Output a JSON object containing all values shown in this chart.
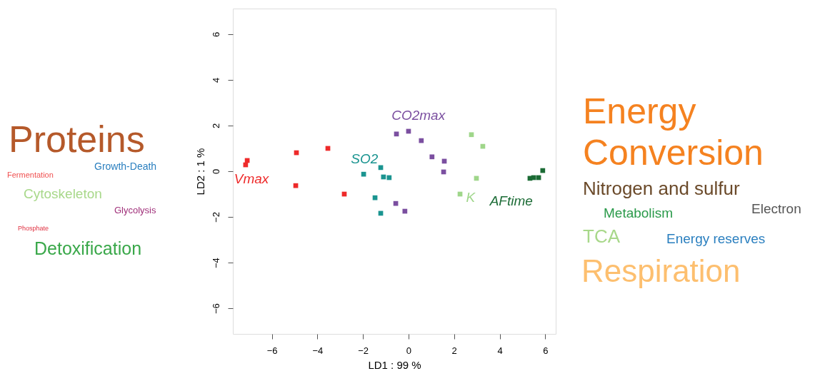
{
  "chart_data": {
    "type": "scatter",
    "xlabel": "LD1 :  99 %",
    "ylabel": "LD2 :  1 %",
    "xlim": [
      -7.71,
      6.46
    ],
    "ylim": [
      -7.12,
      7.12
    ],
    "xticks": [
      -6,
      -4,
      -2,
      0,
      2,
      4,
      6
    ],
    "yticks": [
      -6,
      -4,
      -2,
      0,
      2,
      4,
      6
    ],
    "grid": false,
    "legend": false,
    "marker": "square",
    "series": [
      {
        "name": "Vmax",
        "color": "#ee2a2a",
        "x": [
          -7.15,
          -7.08,
          -4.92,
          -4.95,
          -3.54,
          -2.82
        ],
        "values": [
          0.28,
          0.47,
          0.81,
          -0.63,
          1.0,
          -1.0
        ]
      },
      {
        "name": "SO2",
        "color": "#1a9490",
        "x": [
          -1.97,
          -1.22,
          -1.1,
          -0.85,
          -1.47,
          -1.22
        ],
        "values": [
          -0.13,
          0.16,
          -0.25,
          -0.28,
          -1.16,
          -1.84
        ]
      },
      {
        "name": "CO2max",
        "color": "#7b4fa0",
        "x": [
          -0.53,
          0.0,
          0.56,
          1.03,
          1.57,
          1.54,
          -0.56,
          -0.16
        ],
        "values": [
          1.63,
          1.75,
          1.34,
          0.63,
          0.44,
          -0.03,
          -1.41,
          -1.75
        ]
      },
      {
        "name": "K",
        "color": "#9fd68a",
        "x": [
          2.76,
          3.26,
          2.98,
          2.26
        ],
        "values": [
          1.6,
          1.09,
          -0.31,
          -1.0
        ]
      },
      {
        "name": "AFtime",
        "color": "#1b6b35",
        "x": [
          5.33,
          5.49,
          5.71,
          5.89
        ],
        "values": [
          -0.31,
          -0.28,
          -0.28,
          0.03
        ]
      }
    ],
    "annotations": [
      "Proteins",
      "Growth-Death",
      "Fermentation",
      "Cytoskeleton",
      "Glycolysis",
      "Phosphate",
      "Detoxification",
      "Energy Conversion",
      "Nitrogen and sulfur",
      "Metabolism",
      "Electron",
      "TCA",
      "Energy reserves",
      "Respiration"
    ]
  }
}
